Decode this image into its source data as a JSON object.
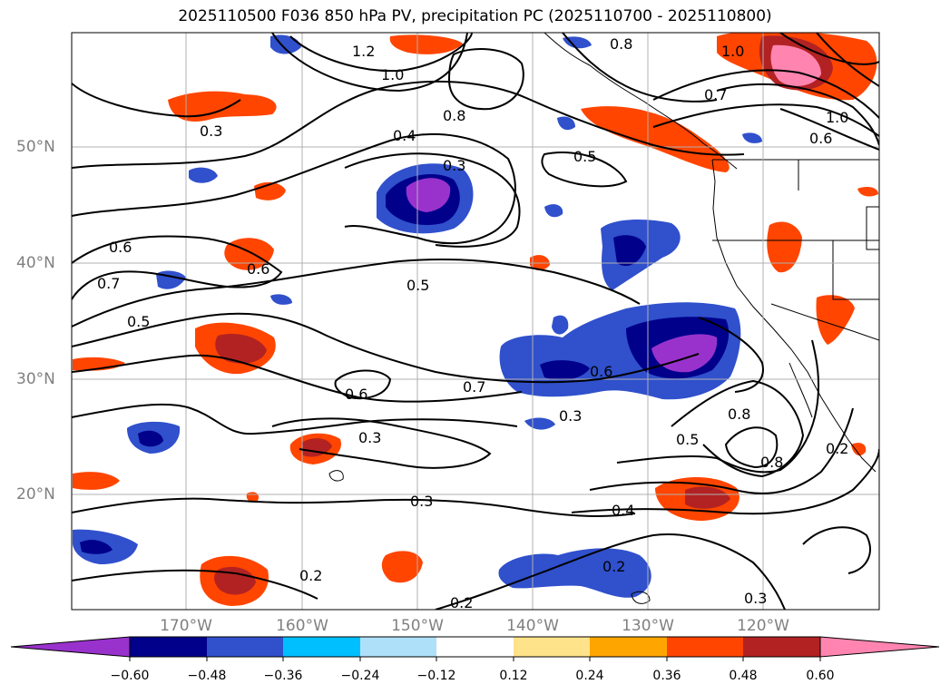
{
  "title": "2025110500 F036 850 hPa PV, precipitation PC (2025110700 - 2025110800)",
  "lat_labels": [
    "50°N",
    "40°N",
    "30°N",
    "20°N"
  ],
  "lon_labels": [
    "170°W",
    "160°W",
    "150°W",
    "140°W",
    "130°W",
    "120°W"
  ],
  "colorbar": {
    "ticks": [
      "−0.60",
      "−0.48",
      "−0.36",
      "−0.24",
      "−0.12",
      "0.12",
      "0.24",
      "0.36",
      "0.48",
      "0.60"
    ],
    "colors": [
      "#9932cc",
      "#00008b",
      "#3050cc",
      "#00bfff",
      "#aee0fa",
      "#ffffff",
      "#ffe38a",
      "#ffa500",
      "#ff4500",
      "#b22222",
      "#ff85b0"
    ]
  },
  "contour_labels": [
    "0.3",
    "0.4",
    "0.5",
    "0.6",
    "0.7",
    "0.8",
    "1.0",
    "1.2",
    "0.2",
    "0.3",
    "0.5",
    "0.6",
    "0.5",
    "0.6",
    "0.3",
    "0.3",
    "0.4",
    "0.2",
    "0.2",
    "0.3",
    "0.2",
    "0.8",
    "0.7",
    "0.5",
    "0.6",
    "0.8",
    "0.3",
    "0.8",
    "1.0",
    "0.7",
    "0.6",
    "1.0"
  ]
}
